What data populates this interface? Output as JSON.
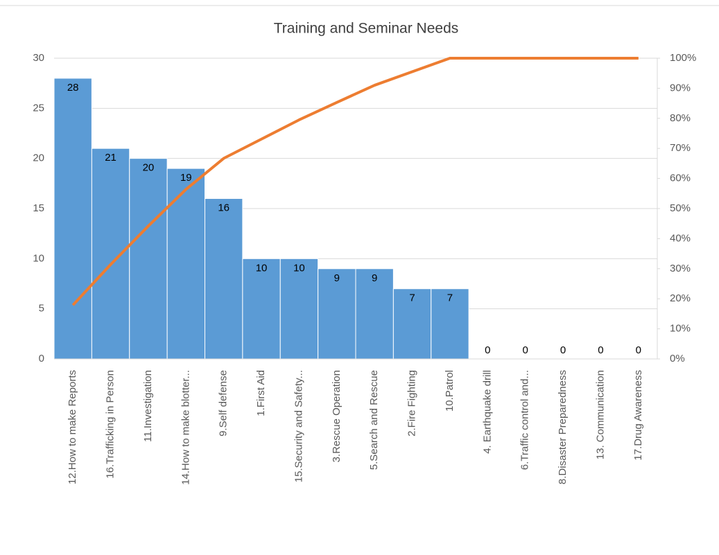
{
  "chart_data": {
    "type": "combo",
    "title": "Training and Seminar Needs",
    "categories": [
      "12.How to make  Reports",
      "16.Trafficking in Person",
      "11.Investigation",
      "14.How to make blotter...",
      "9.Self defense",
      "1.First Aid",
      "15.Security and Safety...",
      "3.Rescue Operation",
      "5.Search and Rescue",
      "2.Fire Fighting",
      "10.Patrol",
      "4. Earthquake drill",
      "6.Traffic control and...",
      "8.Disaster Preparedness",
      "13. Communication",
      "17.Drug Awareness"
    ],
    "series": [
      {
        "type": "bar",
        "color": "#5b9bd5",
        "values": [
          28,
          21,
          20,
          19,
          16,
          10,
          10,
          9,
          9,
          7,
          7,
          0,
          0,
          0,
          0,
          0
        ]
      },
      {
        "type": "line",
        "axis": "y2",
        "color": "#ed7d31",
        "values": [
          17.9,
          31.4,
          44.2,
          56.4,
          66.7,
          73.1,
          79.5,
          85.3,
          91.0,
          95.5,
          100,
          100,
          100,
          100,
          100,
          100
        ]
      }
    ],
    "ylim": [
      0,
      30
    ],
    "yticks": [
      0,
      5,
      10,
      15,
      20,
      25,
      30
    ],
    "y2lim": [
      0,
      100
    ],
    "y2ticks": [
      {
        "value": 0,
        "label": "0%"
      },
      {
        "value": 10,
        "label": "10%"
      },
      {
        "value": 20,
        "label": "20%"
      },
      {
        "value": 30,
        "label": "30%"
      },
      {
        "value": 40,
        "label": "40%"
      },
      {
        "value": 50,
        "label": "50%"
      },
      {
        "value": 60,
        "label": "60%"
      },
      {
        "value": 70,
        "label": "70%"
      },
      {
        "value": 80,
        "label": "80%"
      },
      {
        "value": 90,
        "label": "90%"
      },
      {
        "value": 100,
        "label": "100%"
      }
    ],
    "grid": true
  }
}
